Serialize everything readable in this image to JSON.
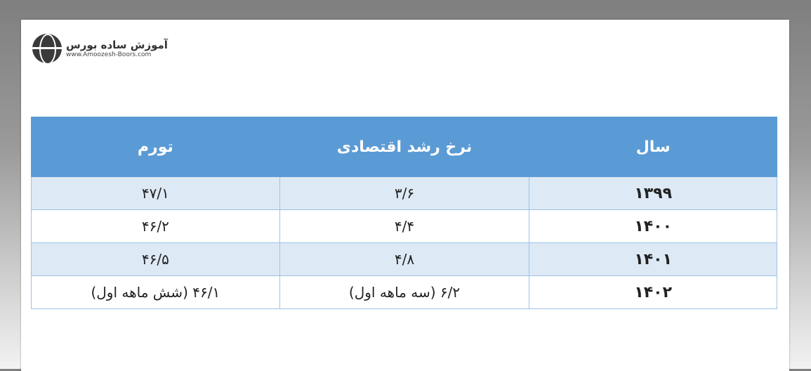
{
  "logo": {
    "title": "آموزش ساده بورس",
    "url": "www.Amoozesh-Boors.com"
  },
  "table": {
    "headers": [
      "سال",
      "نرخ رشد اقتصادی",
      "تورم"
    ],
    "rows": [
      [
        "۱۳۹۹",
        "۳/۶",
        "۴۷/۱"
      ],
      [
        "۱۴۰۰",
        "۴/۴",
        "۴۶/۲"
      ],
      [
        "۱۴۰۱",
        "۴/۸",
        "۴۶/۵"
      ],
      [
        "۱۴۰۲",
        "۶/۲ (سه ماهه اول)",
        "۴۶/۱ (شش ماهه اول)"
      ]
    ]
  },
  "colors": {
    "header": "#5b9bd5",
    "row_alt": "#dde9f5",
    "border": "#9dc3e6"
  }
}
